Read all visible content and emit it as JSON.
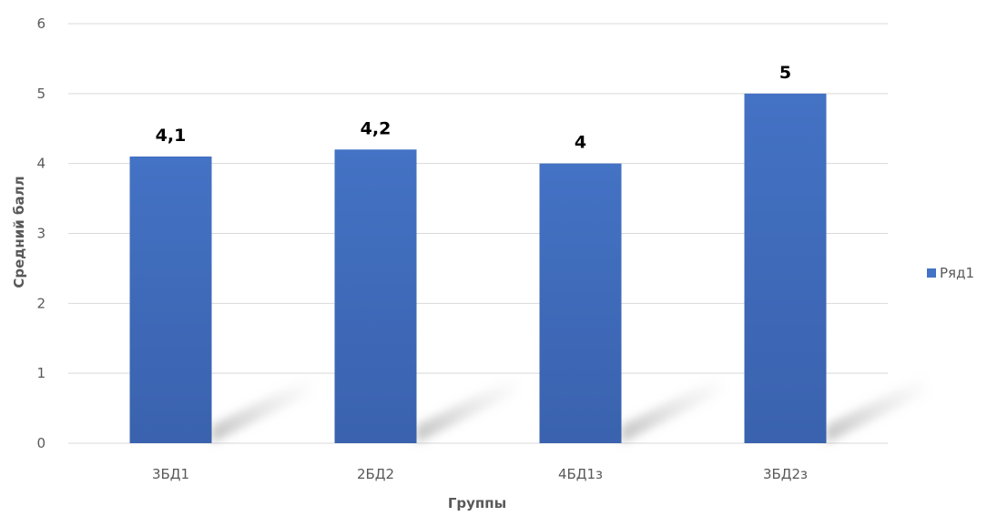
{
  "chart_data": {
    "type": "bar",
    "categories": [
      "3БД1",
      "2БД2",
      "4БД1з",
      "3БД2з"
    ],
    "series": [
      {
        "name": "Ряд1",
        "values": [
          4.1,
          4.2,
          4.0,
          5.0
        ],
        "color": "#4472C4"
      }
    ],
    "data_labels": [
      "4,1",
      "4,2",
      "4",
      "5"
    ],
    "xlabel": "Группы",
    "ylabel": "Средний балл",
    "ylim": [
      0,
      6
    ],
    "yticks": [
      0,
      1,
      2,
      3,
      4,
      5,
      6
    ],
    "grid": true,
    "legend_position": "right"
  }
}
